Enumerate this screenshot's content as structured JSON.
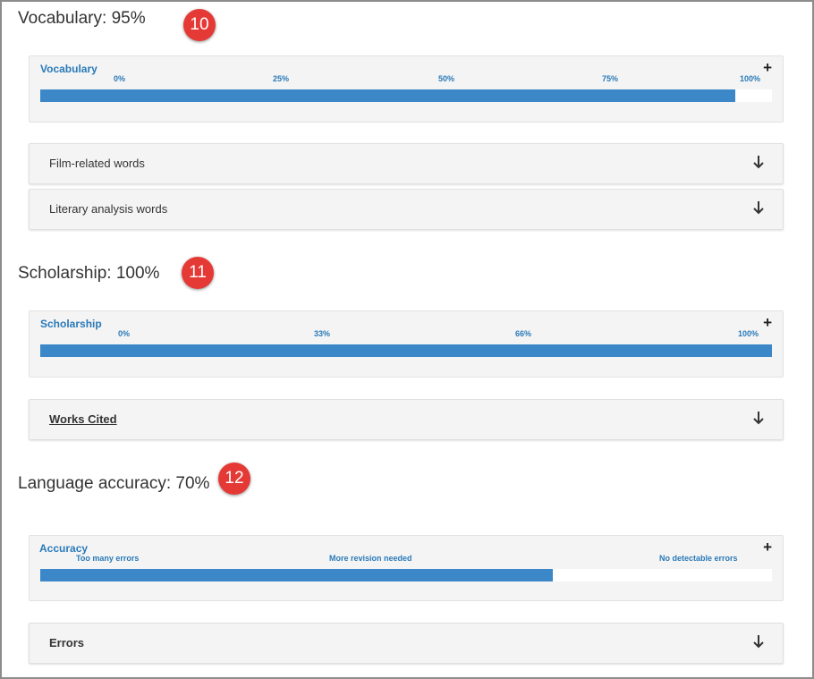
{
  "sections": {
    "vocabulary": {
      "heading": "Vocabulary: 95%",
      "badge": "10",
      "meter": {
        "title": "Vocabulary",
        "ticks": [
          "0%",
          "25%",
          "50%",
          "75%",
          "100%"
        ],
        "level": 0.95,
        "expand_icon": "plus-icon"
      },
      "accordions": [
        {
          "label": "Film-related words",
          "icon": "arrow-down-icon"
        },
        {
          "label": "Literary analysis words",
          "icon": "arrow-down-icon"
        }
      ]
    },
    "scholarship": {
      "heading": "Scholarship: 100%",
      "badge": "11",
      "meter": {
        "title": "Scholarship",
        "ticks": [
          "0%",
          "33%",
          "66%",
          "100%"
        ],
        "level": 1.0,
        "expand_icon": "plus-icon"
      },
      "accordions": [
        {
          "label": "Works Cited",
          "icon": "arrow-down-icon"
        }
      ]
    },
    "language": {
      "heading": "Language accuracy: 70%",
      "badge": "12",
      "meter": {
        "title": "Accuracy",
        "ticks": [
          "Too many errors",
          "More revision needed",
          "No detectable errors"
        ],
        "level": 0.7,
        "expand_icon": "plus-icon"
      },
      "accordions": [
        {
          "label": "Errors",
          "icon": "arrow-down-icon"
        }
      ]
    }
  },
  "colors": {
    "badge": "#e53935",
    "meter_fill": "#3b87c8",
    "meter_text": "#2a7ab8",
    "panel_bg": "#f4f4f4"
  }
}
